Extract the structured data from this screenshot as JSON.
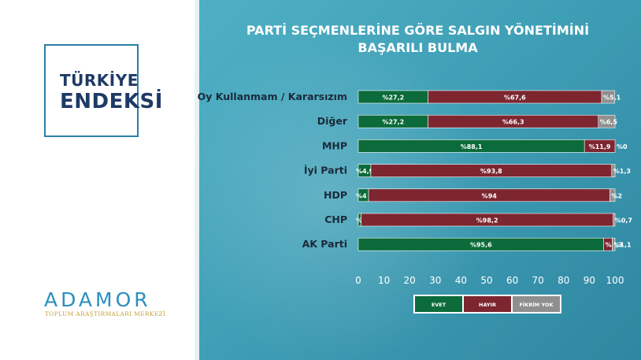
{
  "brand": {
    "line1": "TÜRKİYE",
    "line2": "ENDEKSİ"
  },
  "logo": {
    "name": "ADAMOR",
    "subtitle": "TOPLUM ARAŞTIRMALARI MERKEZİ"
  },
  "colors": {
    "evet": "#0b6b3a",
    "hayir": "#7d2630",
    "fikrim_yok": "#8f8f8f",
    "panel": "#3f9fb6"
  },
  "chart_data": {
    "type": "bar",
    "orientation": "horizontal",
    "stacked": true,
    "title": "PARTİ SEÇMENLERİNE GÖRE SALGIN YÖNETİMİNİ",
    "subtitle": "BAŞARILI BULMA",
    "categories": [
      "Oy Kullanmam / Kararsızım",
      "Diğer",
      "MHP",
      "İyi Parti",
      "HDP",
      "CHP",
      "AK Parti"
    ],
    "series": [
      {
        "name": "EVET",
        "color": "#0b6b3a",
        "values": [
          27.2,
          27.2,
          88.1,
          4.9,
          4,
          1.1,
          95.6
        ],
        "labels": [
          "%27,2",
          "%27,2",
          "%88,1",
          "%4,9",
          "%4",
          "%1,1",
          "%95,6"
        ]
      },
      {
        "name": "HAYIR",
        "color": "#7d2630",
        "values": [
          67.6,
          66.3,
          11.9,
          93.8,
          94,
          98.2,
          3.3
        ],
        "labels": [
          "%67,6",
          "%66,3",
          "%11,9",
          "%93,8",
          "%94",
          "%98,2",
          "%3,3"
        ]
      },
      {
        "name": "FİKRİM YOK",
        "color": "#8f8f8f",
        "values": [
          5.1,
          6.5,
          0,
          1.3,
          2,
          0.7,
          1.1
        ],
        "labels": [
          "%5,1",
          "%6,5",
          "%0",
          "%1,3",
          "%2",
          "%0,7",
          "%1,1"
        ]
      }
    ],
    "x_ticks": [
      "0",
      "10",
      "20",
      "30",
      "40",
      "50",
      "60",
      "70",
      "80",
      "90",
      "100"
    ],
    "xlim": [
      0,
      100
    ],
    "legend_position": "bottom",
    "grid": false
  }
}
